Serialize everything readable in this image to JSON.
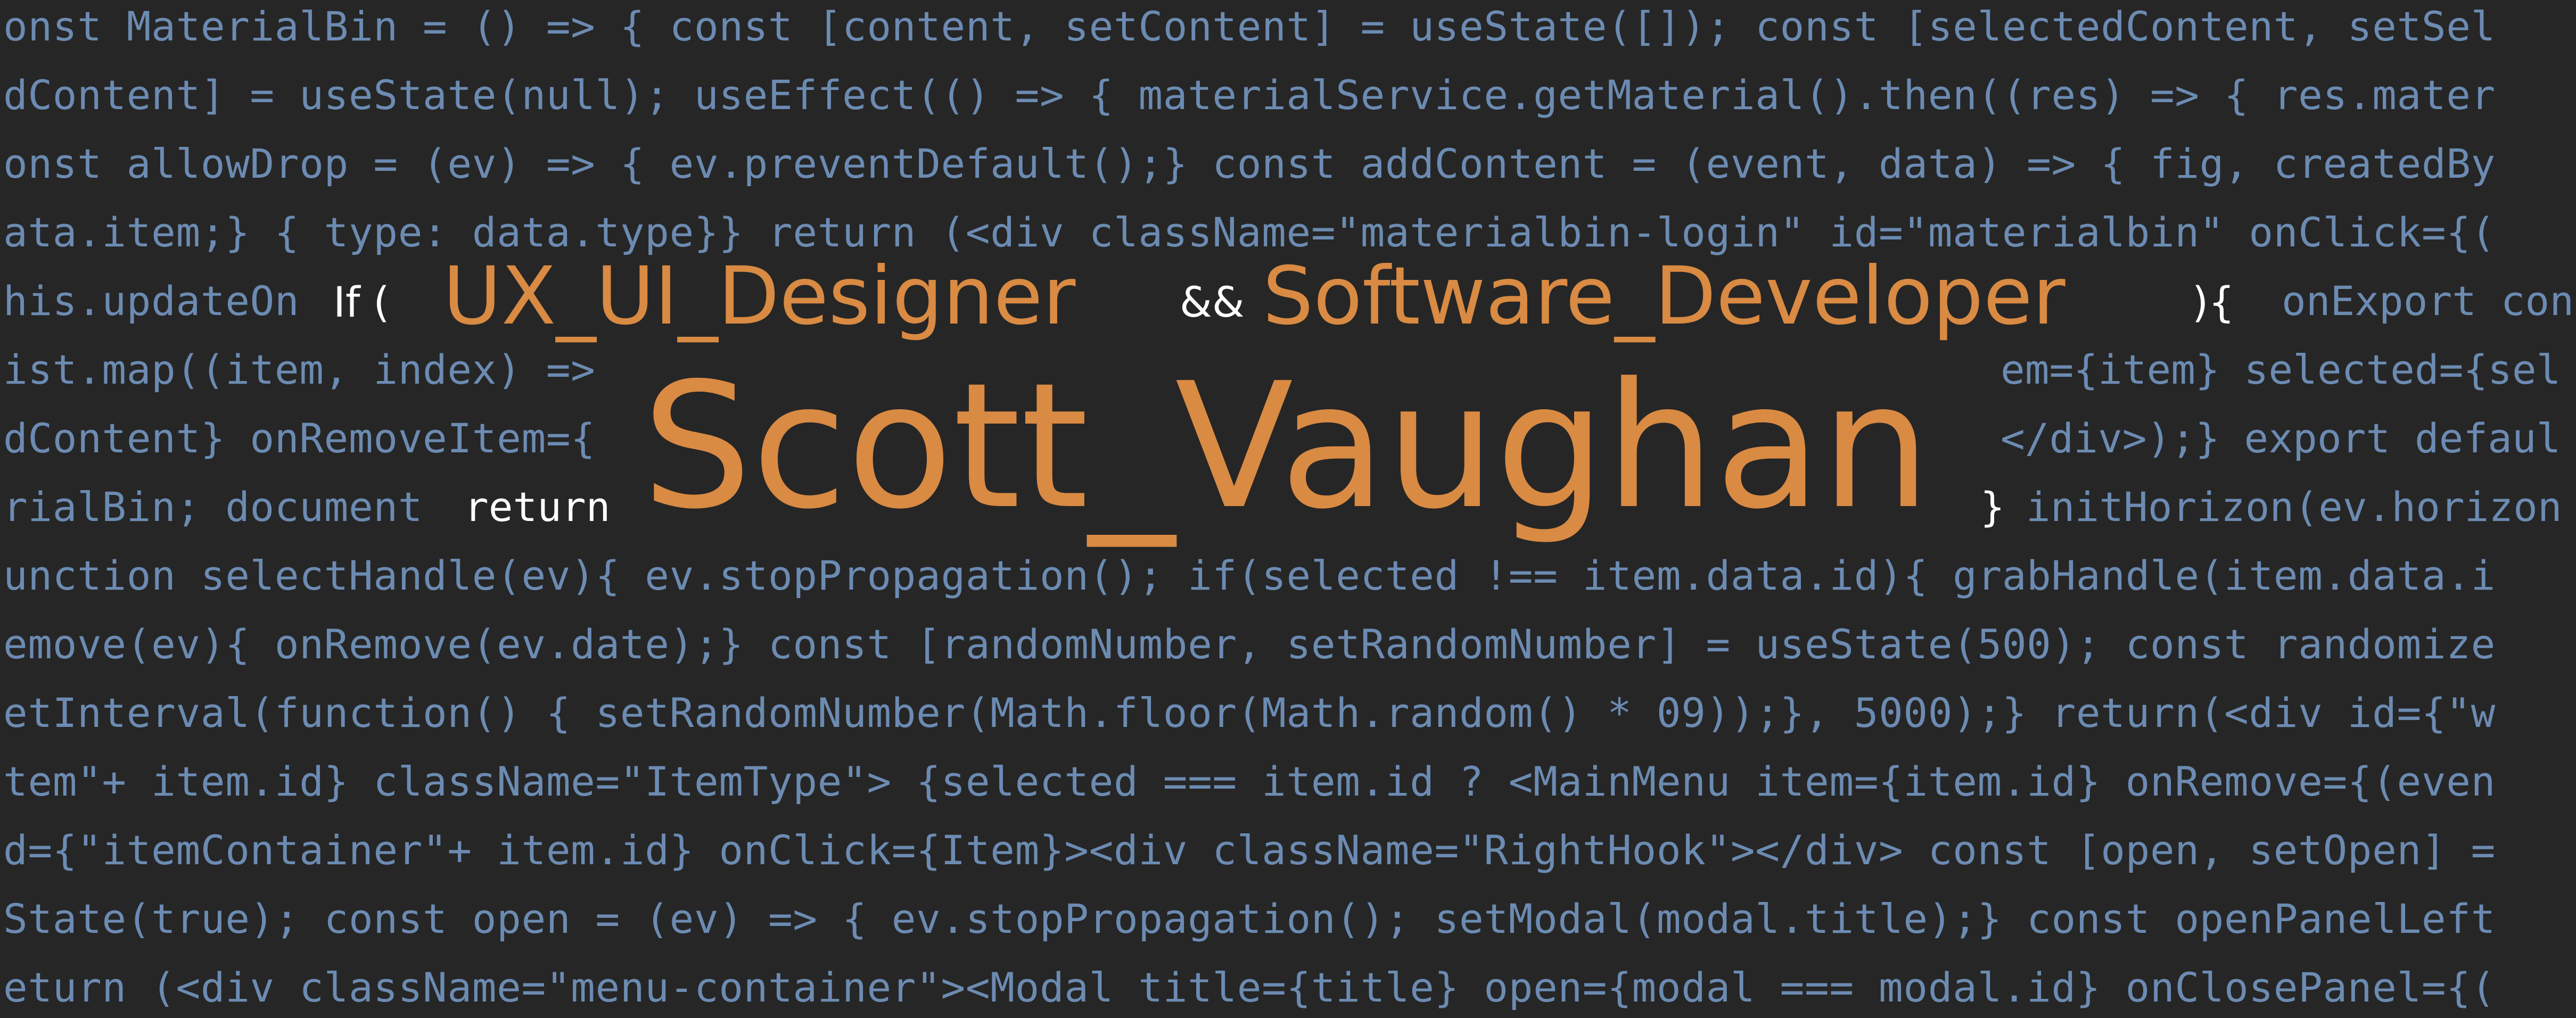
{
  "colors": {
    "background": "#262626",
    "code_text": "#6c8bb2",
    "highlight_orange": "#d98a43",
    "highlight_white": "#ffffff"
  },
  "code_lines": [
    "onst MaterialBin = () => { const [content, setContent] = useState([]); const [selectedContent, setSel",
    "dContent] = useState(null); useEffect(() => { materialService.getMaterial().then((res) => { res.mater",
    "onst allowDrop = (ev) => { ev.preventDefault();} const addContent = (event, data) => { fig, createdBy",
    "ata.item;} { type: data.type}} return (<div className=\"materialbin-login\" id=\"materialbin\" onClick={(",
    "his.updateOn",
    "ist.map((item, index) =>",
    "dContent} onRemoveItem={",
    "rialBin; document",
    "unction selectHandle(ev){ ev.stopPropagation(); if(selected !== item.data.id){ grabHandle(item.data.i",
    "emove(ev){ onRemove(ev.date);} const [randomNumber, setRandomNumber] = useState(500); const randomize",
    "etInterval(function() { setRandomNumber(Math.floor(Math.random() * 09));}, 5000);} return(<div id={\"w",
    "tem\"+ item.id} className=\"ItemType\"> {selected === item.id ? <MainMenu item={item.id} onRemove={(even",
    "d={\"itemContainer\"+ item.id} onClick={Item}><div className=\"RightHook\"></div> const [open, setOpen] =",
    "State(true); const open = (ev) => { ev.stopPropagation(); setModal(modal.title);} const openPanelLeft",
    "eturn (<div className=\"menu-container\"><Modal title={title} open={modal === modal.id} onClosePanel={("
  ],
  "right_fragments": {
    "line5": "onExport con",
    "line6": "em={item} selected={sel",
    "line7": "</div>);} export defaul",
    "line8": "initHorizon(ev.horizon"
  },
  "headline": {
    "if_keyword": "If (",
    "role_one": "UX_UI_Designer",
    "and_operator": "&&",
    "role_two": "Software_Developer",
    "close_paren": "){",
    "return_keyword": "return",
    "name": "Scott_Vaughan",
    "close_brace": "}"
  }
}
